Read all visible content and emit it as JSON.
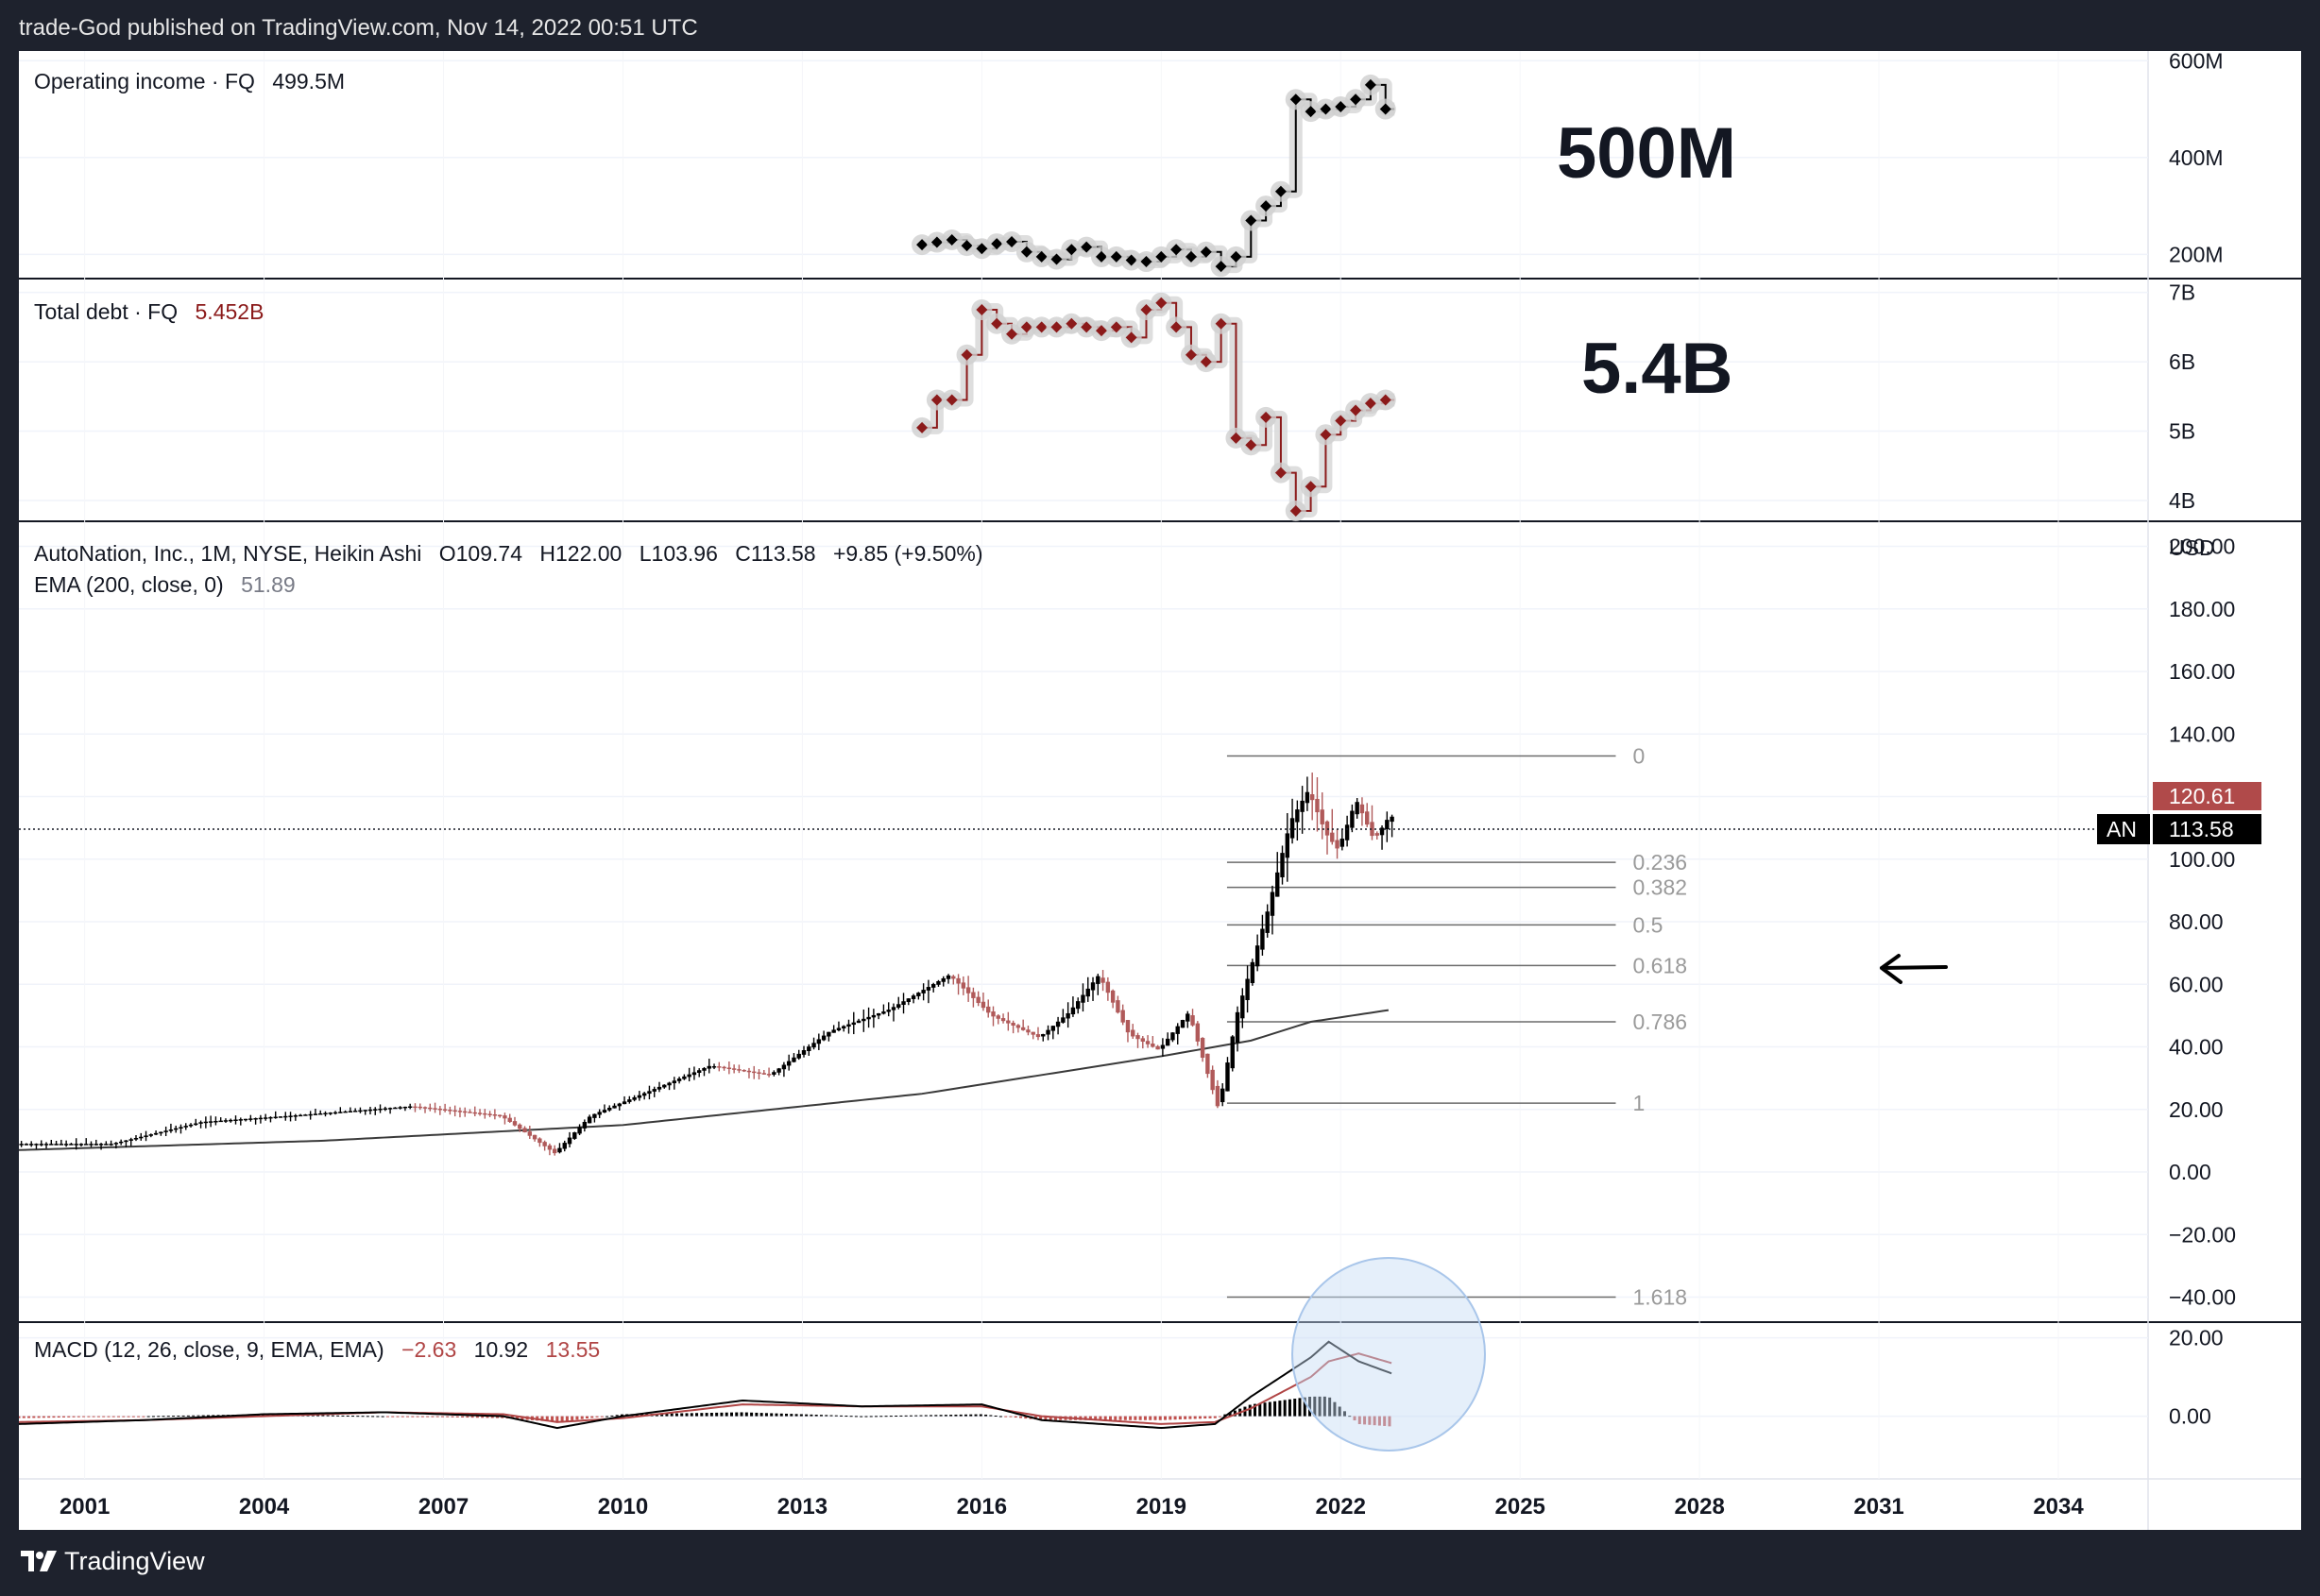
{
  "header": {
    "published_by": "trade-God published on TradingView.com, Nov 14, 2022 00:51 UTC"
  },
  "footer": {
    "brand": "TradingView"
  },
  "colors": {
    "bull": "#000000",
    "bear": "#b05a5a",
    "debt": "#8b1a1a",
    "ema": "#3a3a3a",
    "macd": "#000000",
    "signal": "#b04545",
    "fib_line": "#6b6b6b",
    "fib_text": "#9a9a9a",
    "price_badge_red": "#b04a4a",
    "price_badge_black": "#000000",
    "highlight_circle": "#c6dcf5"
  },
  "panes": {
    "operating_income": {
      "legend_name": "Operating income · FQ",
      "legend_value": "499.5M",
      "annotation": "500M",
      "y_ticks": [
        "600M",
        "400M",
        "200M"
      ]
    },
    "total_debt": {
      "legend_name": "Total debt · FQ",
      "legend_value": "5.452B",
      "annotation": "5.4B",
      "y_ticks": [
        "7B",
        "6B",
        "5B",
        "4B"
      ]
    },
    "price": {
      "legend_title": "AutoNation, Inc., 1M, NYSE, Heikin Ashi",
      "legend_o": "O109.74",
      "legend_h": "H122.00",
      "legend_l": "L103.96",
      "legend_c": "C113.58",
      "legend_change": "+9.85 (+9.50%)",
      "ema_name": "EMA (200, close, 0)",
      "ema_value": "51.89",
      "currency": "USD",
      "y_ticks": [
        "200.00",
        "180.00",
        "160.00",
        "140.00",
        "120.00",
        "100.00",
        "80.00",
        "60.00",
        "40.00",
        "20.00",
        "0.00",
        "−20.00",
        "−40.00"
      ],
      "badge_high": "120.61",
      "badge_symbol": "AN",
      "badge_last": "113.58",
      "fib_labels": [
        "0",
        "0.236",
        "0.382",
        "0.5",
        "0.618",
        "0.786",
        "1",
        "1.618"
      ]
    },
    "macd": {
      "legend_name": "MACD (12, 26, close, 9, EMA, EMA)",
      "legend_hist": "−2.63",
      "legend_macd": "10.92",
      "legend_signal": "13.55",
      "y_ticks": [
        "20.00",
        "0.00"
      ]
    }
  },
  "time_axis": [
    "2001",
    "2004",
    "2007",
    "2010",
    "2013",
    "2016",
    "2019",
    "2022",
    "2025",
    "2028",
    "2031",
    "2034"
  ],
  "chart_data": [
    {
      "type": "line",
      "title": "Operating income · FQ",
      "x": [
        2015.0,
        2015.25,
        2015.5,
        2015.75,
        2016.0,
        2016.25,
        2016.5,
        2016.75,
        2017.0,
        2017.25,
        2017.5,
        2017.75,
        2018.0,
        2018.25,
        2018.5,
        2018.75,
        2019.0,
        2019.25,
        2019.5,
        2019.75,
        2020.0,
        2020.25,
        2020.5,
        2020.75,
        2021.0,
        2021.25,
        2021.5,
        2021.75,
        2022.0,
        2022.25,
        2022.5,
        2022.75
      ],
      "y": [
        220,
        225,
        230,
        218,
        212,
        222,
        226,
        205,
        195,
        190,
        210,
        215,
        195,
        195,
        188,
        185,
        195,
        210,
        195,
        205,
        175,
        195,
        270,
        300,
        330,
        520,
        495,
        500,
        505,
        520,
        550,
        500
      ],
      "ylim": [
        150,
        620
      ]
    },
    {
      "type": "line",
      "title": "Total debt · FQ",
      "x": [
        2015.0,
        2015.25,
        2015.5,
        2015.75,
        2016.0,
        2016.25,
        2016.5,
        2016.75,
        2017.0,
        2017.25,
        2017.5,
        2017.75,
        2018.0,
        2018.25,
        2018.5,
        2018.75,
        2019.0,
        2019.25,
        2019.5,
        2019.75,
        2020.0,
        2020.25,
        2020.5,
        2020.75,
        2021.0,
        2021.25,
        2021.5,
        2021.75,
        2022.0,
        2022.25,
        2022.5,
        2022.75
      ],
      "y": [
        5.05,
        5.45,
        5.45,
        6.1,
        6.75,
        6.55,
        6.4,
        6.5,
        6.5,
        6.5,
        6.55,
        6.5,
        6.45,
        6.5,
        6.35,
        6.75,
        6.85,
        6.5,
        6.1,
        6.0,
        6.55,
        4.9,
        4.8,
        5.2,
        4.4,
        3.85,
        4.2,
        4.95,
        5.15,
        5.3,
        5.4,
        5.45
      ],
      "ylim": [
        3.7,
        7.2
      ]
    },
    {
      "type": "candlestick",
      "title": "AutoNation, Inc., 1M, NYSE, Heikin Ashi",
      "xlim": [
        1999.9,
        2035.5
      ],
      "ylim": [
        -48,
        208
      ],
      "anchor_x": [
        1999.9,
        2001.5,
        2003.0,
        2004.5,
        2006.5,
        2008.0,
        2008.9,
        2009.5,
        2011.5,
        2012.5,
        2013.5,
        2014.5,
        2015.5,
        2016.2,
        2017.0,
        2017.5,
        2018.0,
        2018.5,
        2019.0,
        2019.5,
        2020.0,
        2020.3,
        2020.8,
        2021.2,
        2021.5,
        2021.8,
        2022.0,
        2022.3,
        2022.6,
        2022.85
      ],
      "anchor_close": [
        9,
        9,
        16,
        18,
        21,
        18,
        6,
        18,
        34,
        31,
        45,
        52,
        63,
        50,
        43,
        51,
        63,
        44,
        39,
        51,
        20,
        50,
        82,
        112,
        122,
        108,
        103,
        119,
        106,
        113.58
      ],
      "ema200_x": [
        1999.9,
        2005,
        2010,
        2015,
        2019,
        2020.5,
        2021.5,
        2022.85
      ],
      "ema200_y": [
        7,
        10,
        15,
        25,
        37,
        42,
        48,
        51.89
      ],
      "last_close": 113.58,
      "all_time_high_badge": 120.61
    },
    {
      "type": "line",
      "title": "Fibonacci retracement",
      "levels": [
        0,
        0.236,
        0.382,
        0.5,
        0.618,
        0.786,
        1,
        1.618
      ],
      "prices": [
        133,
        99,
        91,
        79,
        66,
        48,
        22,
        -40
      ]
    },
    {
      "type": "line",
      "title": "MACD (12, 26, close, 9, EMA, EMA)",
      "ylim": [
        -16,
        24
      ],
      "series": [
        {
          "name": "MACD",
          "x": [
            1999.9,
            2002,
            2004,
            2006,
            2008,
            2008.9,
            2010,
            2012,
            2014,
            2016,
            2017,
            2018,
            2019,
            2019.9,
            2020.5,
            2021.0,
            2021.5,
            2021.8,
            2022.3,
            2022.85
          ],
          "y": [
            -2,
            -1,
            0.5,
            1,
            0,
            -3,
            0,
            4,
            2.5,
            3,
            -1,
            -2,
            -3,
            -2,
            5,
            10,
            15,
            19,
            14,
            10.92
          ]
        },
        {
          "name": "Signal",
          "x": [
            1999.9,
            2002,
            2004,
            2006,
            2008,
            2008.9,
            2010,
            2012,
            2014,
            2016,
            2017,
            2018,
            2019,
            2019.9,
            2020.5,
            2021.0,
            2021.5,
            2021.8,
            2022.3,
            2022.85
          ],
          "y": [
            -1.5,
            -1,
            0,
            1,
            0.5,
            -1.5,
            -0.5,
            3,
            2.5,
            2.5,
            0,
            -1,
            -2,
            -1.5,
            2,
            6,
            10,
            14,
            16,
            13.55
          ]
        }
      ]
    }
  ]
}
